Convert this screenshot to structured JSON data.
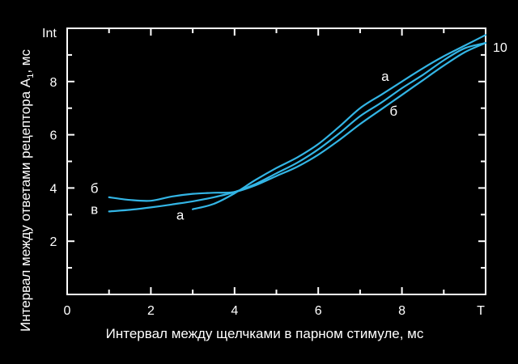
{
  "chart_data": {
    "type": "line",
    "title": "",
    "xlabel": "Интервал между щелчками в парном стимуле, мс",
    "ylabel": "Интервал между ответами рецептора A",
    "ylabel_subscript": "1",
    "ylabel_unit": ", мс",
    "y_axis_marker": "Int",
    "x_axis_end_label": "T",
    "right_axis_label": "10",
    "xlim": [
      0,
      10
    ],
    "ylim": [
      0,
      10
    ],
    "x_ticks": [
      0,
      2,
      4,
      6,
      8
    ],
    "y_ticks": [
      2,
      4,
      6,
      8
    ],
    "grid": false,
    "legend": "none",
    "line_color": "#33b5e5",
    "series": [
      {
        "name": "а",
        "label_at": [
          7.6,
          8.2
        ],
        "points": [
          [
            3,
            3.2
          ],
          [
            3.5,
            3.4
          ],
          [
            4,
            3.8
          ],
          [
            4.5,
            4.3
          ],
          [
            5,
            4.75
          ],
          [
            5.5,
            5.15
          ],
          [
            6,
            5.65
          ],
          [
            6.5,
            6.3
          ],
          [
            7,
            7.0
          ],
          [
            7.5,
            7.5
          ],
          [
            8,
            8.0
          ],
          [
            8.5,
            8.5
          ],
          [
            9,
            8.95
          ],
          [
            9.5,
            9.35
          ],
          [
            10,
            9.75
          ]
        ]
      },
      {
        "name": "б",
        "label_at": [
          0.65,
          4.0
        ],
        "points": [
          [
            1,
            3.65
          ],
          [
            1.5,
            3.55
          ],
          [
            2,
            3.52
          ],
          [
            2.5,
            3.68
          ],
          [
            3,
            3.78
          ],
          [
            3.5,
            3.82
          ],
          [
            4,
            3.85
          ],
          [
            4.5,
            4.1
          ],
          [
            5,
            4.45
          ],
          [
            5.5,
            4.8
          ],
          [
            6,
            5.25
          ],
          [
            6.5,
            5.8
          ],
          [
            7,
            6.4
          ],
          [
            7.5,
            6.95
          ],
          [
            8,
            7.5
          ],
          [
            8.5,
            8.05
          ],
          [
            9,
            8.6
          ],
          [
            9.5,
            9.1
          ],
          [
            10,
            9.45
          ]
        ]
      },
      {
        "name": "в",
        "label_at": [
          0.65,
          3.2
        ],
        "points": [
          [
            1,
            3.12
          ],
          [
            1.5,
            3.18
          ],
          [
            2,
            3.27
          ],
          [
            2.5,
            3.38
          ],
          [
            3,
            3.5
          ],
          [
            3.5,
            3.65
          ],
          [
            4,
            3.85
          ],
          [
            4.5,
            4.15
          ],
          [
            5,
            4.55
          ],
          [
            5.5,
            4.95
          ],
          [
            6,
            5.45
          ],
          [
            6.5,
            6.05
          ],
          [
            7,
            6.7
          ],
          [
            7.5,
            7.2
          ],
          [
            8,
            7.75
          ],
          [
            8.5,
            8.25
          ],
          [
            9,
            8.8
          ],
          [
            9.5,
            9.25
          ],
          [
            10,
            9.45
          ]
        ]
      }
    ],
    "annotations": [
      {
        "text": "а",
        "at": [
          2.7,
          3.0
        ]
      },
      {
        "text": "б",
        "at": [
          7.8,
          6.9
        ]
      }
    ]
  }
}
